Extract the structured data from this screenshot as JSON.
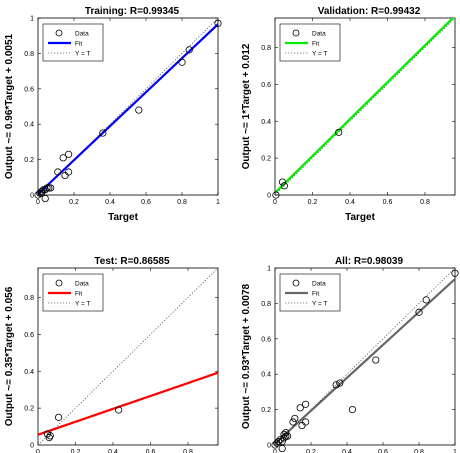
{
  "chart_data": [
    {
      "type": "scatter",
      "title": "Training: R=0.99345",
      "xlabel": "Target",
      "ylabel": "Output ~= 0.96*Target + 0.0051",
      "xlim": [
        0,
        1
      ],
      "ylim": [
        0,
        1
      ],
      "xticks": [
        "0",
        "0.2",
        "0.4",
        "0.6",
        "0.8",
        "1"
      ],
      "yticks": [
        "0",
        "0.2",
        "0.4",
        "0.6",
        "0.8",
        "1"
      ],
      "fit": {
        "slope": 0.96,
        "intercept": 0.0051,
        "color": "#0000ff"
      },
      "legend": [
        "Data",
        "Fit",
        "Y = T"
      ],
      "legend_position": "top-left",
      "points": [
        {
          "x": 0.0,
          "y": 0.0
        },
        {
          "x": 0.01,
          "y": 0.01
        },
        {
          "x": 0.02,
          "y": 0.02
        },
        {
          "x": 0.03,
          "y": 0.03
        },
        {
          "x": 0.04,
          "y": 0.03
        },
        {
          "x": 0.05,
          "y": 0.04
        },
        {
          "x": 0.06,
          "y": 0.04
        },
        {
          "x": 0.07,
          "y": 0.04
        },
        {
          "x": 0.04,
          "y": -0.02
        },
        {
          "x": 0.02,
          "y": 0.01
        },
        {
          "x": 0.11,
          "y": 0.13
        },
        {
          "x": 0.14,
          "y": 0.21
        },
        {
          "x": 0.15,
          "y": 0.11
        },
        {
          "x": 0.17,
          "y": 0.13
        },
        {
          "x": 0.17,
          "y": 0.23
        },
        {
          "x": 0.36,
          "y": 0.35
        },
        {
          "x": 0.56,
          "y": 0.48
        },
        {
          "x": 0.8,
          "y": 0.75
        },
        {
          "x": 0.84,
          "y": 0.82
        },
        {
          "x": 1.0,
          "y": 0.97
        }
      ]
    },
    {
      "type": "scatter",
      "title": "Validation: R=0.99432",
      "xlabel": "Target",
      "ylabel": "Output ~= 1*Target + 0.012",
      "xlim": [
        0,
        0.96
      ],
      "ylim": [
        0,
        0.96
      ],
      "xticks": [
        "0",
        "0.2",
        "0.4",
        "0.6",
        "0.8"
      ],
      "yticks": [
        "0",
        "0.2",
        "0.4",
        "0.6",
        "0.8"
      ],
      "fit": {
        "slope": 1,
        "intercept": 0.012,
        "color": "#00ee00"
      },
      "legend": [
        "Data",
        "Fit",
        "Y = T"
      ],
      "legend_position": "top-left",
      "points": [
        {
          "x": 0.005,
          "y": 0.0
        },
        {
          "x": 0.04,
          "y": 0.07
        },
        {
          "x": 0.05,
          "y": 0.05
        },
        {
          "x": 0.34,
          "y": 0.34
        }
      ]
    },
    {
      "type": "scatter",
      "title": "Test: R=0.86585",
      "xlabel": "Target",
      "ylabel": "Output ~= 0.35*Target + 0.056",
      "xlim": [
        0,
        0.96
      ],
      "ylim": [
        0,
        0.96
      ],
      "xticks": [
        "0",
        "0.2",
        "0.4",
        "0.6",
        "0.8"
      ],
      "yticks": [
        "0",
        "0.2",
        "0.4",
        "0.6",
        "0.8"
      ],
      "fit": {
        "slope": 0.35,
        "intercept": 0.056,
        "color": "#ff0000"
      },
      "legend": [
        "Data",
        "Fit",
        "Y = T"
      ],
      "legend_position": "top-left",
      "points": [
        {
          "x": 0.05,
          "y": 0.06
        },
        {
          "x": 0.06,
          "y": 0.04
        },
        {
          "x": 0.065,
          "y": 0.05
        },
        {
          "x": 0.11,
          "y": 0.15
        },
        {
          "x": 0.43,
          "y": 0.19
        }
      ]
    },
    {
      "type": "scatter",
      "title": "All: R=0.98039",
      "xlabel": "Target",
      "ylabel": "Output ~= 0.93*Target + 0.0078",
      "xlim": [
        0,
        1
      ],
      "ylim": [
        0,
        1
      ],
      "xticks": [
        "0",
        "0.2",
        "0.4",
        "0.6",
        "0.8",
        "1"
      ],
      "yticks": [
        "0",
        "0.2",
        "0.4",
        "0.6",
        "0.8",
        "1"
      ],
      "fit": {
        "slope": 0.93,
        "intercept": 0.0078,
        "color": "#666666"
      },
      "legend": [
        "Data",
        "Fit",
        "Y = T"
      ],
      "legend_position": "top-left",
      "points": [
        {
          "x": 0.0,
          "y": 0.0
        },
        {
          "x": 0.01,
          "y": 0.01
        },
        {
          "x": 0.02,
          "y": 0.02
        },
        {
          "x": 0.03,
          "y": 0.03
        },
        {
          "x": 0.04,
          "y": 0.02
        },
        {
          "x": 0.05,
          "y": 0.04
        },
        {
          "x": 0.06,
          "y": 0.05
        },
        {
          "x": 0.07,
          "y": 0.05
        },
        {
          "x": 0.04,
          "y": -0.02
        },
        {
          "x": 0.05,
          "y": 0.06
        },
        {
          "x": 0.06,
          "y": 0.07
        },
        {
          "x": 0.1,
          "y": 0.13
        },
        {
          "x": 0.11,
          "y": 0.15
        },
        {
          "x": 0.14,
          "y": 0.21
        },
        {
          "x": 0.15,
          "y": 0.11
        },
        {
          "x": 0.17,
          "y": 0.13
        },
        {
          "x": 0.17,
          "y": 0.23
        },
        {
          "x": 0.34,
          "y": 0.34
        },
        {
          "x": 0.36,
          "y": 0.35
        },
        {
          "x": 0.43,
          "y": 0.2
        },
        {
          "x": 0.56,
          "y": 0.48
        },
        {
          "x": 0.8,
          "y": 0.75
        },
        {
          "x": 0.84,
          "y": 0.82
        },
        {
          "x": 1.0,
          "y": 0.97
        }
      ]
    }
  ]
}
